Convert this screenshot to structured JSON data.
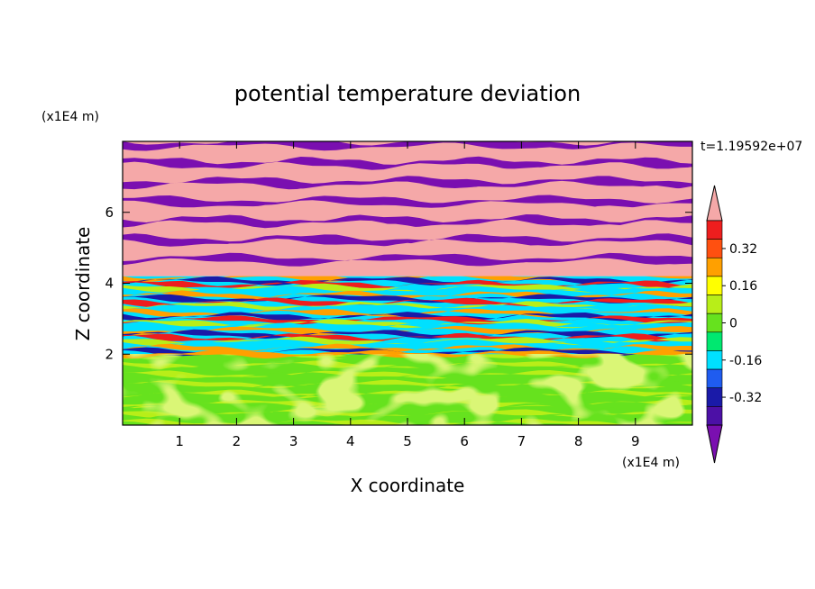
{
  "chart_data": {
    "type": "heatmap",
    "title": "potential temperature deviation",
    "xlabel": "X coordinate",
    "ylabel": "Z coordinate",
    "x_unit": "(x1E4 m)",
    "y_unit": "(x1E4 m)",
    "time_label": "t=1.19592e+07",
    "xlim": [
      0,
      10
    ],
    "ylim": [
      0,
      8
    ],
    "x_ticks": [
      "1",
      "2",
      "3",
      "4",
      "5",
      "6",
      "7",
      "8",
      "9"
    ],
    "y_ticks": [
      "2",
      "4",
      "6"
    ],
    "colorbar": {
      "levels": [
        -0.48,
        -0.4,
        -0.32,
        -0.24,
        -0.16,
        -0.08,
        0,
        0.08,
        0.16,
        0.24,
        0.32,
        0.4,
        0.48
      ],
      "tick_labels": [
        "0.32",
        "0.16",
        "0",
        "-0.16",
        "-0.32"
      ],
      "colors": [
        "#7a0fb0",
        "#4c10a6",
        "#1a1aa8",
        "#1f5cf0",
        "#00e0ff",
        "#00e870",
        "#66e21e",
        "#b8ee18",
        "#ffff00",
        "#ffa000",
        "#ff5010",
        "#ee1e1e",
        "#f5a8a8"
      ]
    },
    "bands": [
      {
        "z": [
          0.0,
          2.0
        ],
        "pattern": "green mottled",
        "values": [
          0.0,
          0.08,
          -0.04
        ]
      },
      {
        "z": [
          2.0,
          4.2
        ],
        "pattern": "mixed turbulent layers",
        "values": [
          -0.16,
          0.24,
          -0.32,
          0.4,
          0.08
        ]
      },
      {
        "z": [
          4.2,
          8.0
        ],
        "pattern": "alternating layers",
        "values": [
          0.48,
          -0.48
        ]
      }
    ]
  }
}
